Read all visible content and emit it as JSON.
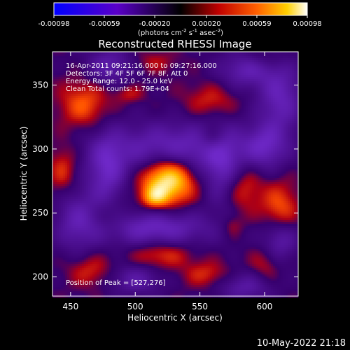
{
  "chart_data": {
    "type": "heatmap",
    "title": "Reconstructed RHESSI Image",
    "xlabel": "Heliocentric X (arcsec)",
    "ylabel": "Heliocentric Y (arcsec)",
    "xlim": [
      436,
      626
    ],
    "ylim": [
      185,
      376
    ],
    "x_ticks": [
      {
        "value": 450,
        "label": "450"
      },
      {
        "value": 500,
        "label": "500"
      },
      {
        "value": 550,
        "label": "550"
      },
      {
        "value": 600,
        "label": "600"
      }
    ],
    "y_ticks": [
      {
        "value": 200,
        "label": "200"
      },
      {
        "value": 250,
        "label": "250"
      },
      {
        "value": 300,
        "label": "300"
      },
      {
        "value": 350,
        "label": "350"
      }
    ],
    "colorbar": {
      "range": [
        -0.00098,
        0.00098
      ],
      "ticks": [
        {
          "value": -0.00098,
          "label": "-0.00098"
        },
        {
          "value": -0.00059,
          "label": "-0.00059"
        },
        {
          "value": -0.0002,
          "label": "-0.00020"
        },
        {
          "value": 0.0002,
          "label": "0.00020"
        },
        {
          "value": 0.00059,
          "label": "0.00059"
        },
        {
          "value": 0.00098,
          "label": "0.00098"
        }
      ],
      "label": "(photons cm",
      "label_exp1": "-2",
      "label_mid": " s",
      "label_exp2": "-1",
      "label_end": " asec",
      "label_exp3": "-2",
      "label_close": ")"
    },
    "info_lines": [
      "16-Apr-2011 09:21:16.000 to 09:27:16.000",
      "Detectors: 3F 4F 5F 6F 7F 8F, Att 0",
      "Energy Range: 12.0 - 25.0 keV",
      "Clean    Total counts: 1.79E+04"
    ],
    "peak_text": "Position of Peak = [527,276]",
    "peak": [
      527,
      276
    ],
    "features": [
      {
        "x": 525,
        "y": 276,
        "sx": 14,
        "sy": 13,
        "a": 1.0
      },
      {
        "x": 515,
        "y": 262,
        "sx": 7,
        "sy": 6,
        "a": 0.45
      },
      {
        "x": 460,
        "y": 335,
        "sx": 13,
        "sy": 13,
        "a": 0.4
      },
      {
        "x": 444,
        "y": 283,
        "sx": 8,
        "sy": 14,
        "a": 0.32
      },
      {
        "x": 495,
        "y": 343,
        "sx": 8,
        "sy": 5,
        "a": 0.22
      },
      {
        "x": 582,
        "y": 270,
        "sx": 11,
        "sy": 14,
        "a": 0.35
      },
      {
        "x": 612,
        "y": 252,
        "sx": 10,
        "sy": 15,
        "a": 0.42
      },
      {
        "x": 560,
        "y": 308,
        "sx": 7,
        "sy": 7,
        "a": 0.25
      },
      {
        "x": 482,
        "y": 246,
        "sx": 10,
        "sy": 9,
        "a": 0.22
      },
      {
        "x": 520,
        "y": 218,
        "sx": 16,
        "sy": 8,
        "a": 0.34
      },
      {
        "x": 465,
        "y": 205,
        "sx": 12,
        "sy": 9,
        "a": 0.28
      },
      {
        "x": 555,
        "y": 202,
        "sx": 12,
        "sy": 7,
        "a": 0.28
      },
      {
        "x": 600,
        "y": 210,
        "sx": 8,
        "sy": 10,
        "a": 0.22
      },
      {
        "x": 558,
        "y": 338,
        "sx": 14,
        "sy": 9,
        "a": 0.26
      },
      {
        "x": 515,
        "y": 368,
        "sx": 12,
        "sy": 6,
        "a": 0.18
      },
      {
        "x": 600,
        "y": 372,
        "sx": 12,
        "sy": 6,
        "a": 0.18
      },
      {
        "x": 575,
        "y": 240,
        "sx": 6,
        "sy": 6,
        "a": 0.2
      },
      {
        "x": 530,
        "y": 300,
        "sx": 38,
        "sy": 14,
        "a": -0.62
      },
      {
        "x": 515,
        "y": 238,
        "sx": 30,
        "sy": 10,
        "a": -0.62
      },
      {
        "x": 478,
        "y": 282,
        "sx": 10,
        "sy": 20,
        "a": -0.55
      },
      {
        "x": 568,
        "y": 282,
        "sx": 10,
        "sy": 20,
        "a": -0.48
      },
      {
        "x": 600,
        "y": 302,
        "sx": 12,
        "sy": 12,
        "a": -0.5
      },
      {
        "x": 612,
        "y": 340,
        "sx": 12,
        "sy": 20,
        "a": -0.55
      },
      {
        "x": 585,
        "y": 362,
        "sx": 14,
        "sy": 10,
        "a": -0.48
      },
      {
        "x": 480,
        "y": 365,
        "sx": 12,
        "sy": 10,
        "a": -0.45
      },
      {
        "x": 455,
        "y": 245,
        "sx": 12,
        "sy": 18,
        "a": -0.45
      },
      {
        "x": 612,
        "y": 230,
        "sx": 10,
        "sy": 12,
        "a": -0.5
      },
      {
        "x": 500,
        "y": 198,
        "sx": 14,
        "sy": 8,
        "a": -0.4
      },
      {
        "x": 585,
        "y": 192,
        "sx": 14,
        "sy": 8,
        "a": -0.4
      }
    ]
  },
  "footer": {
    "timestamp": "10-May-2022 21:18"
  }
}
